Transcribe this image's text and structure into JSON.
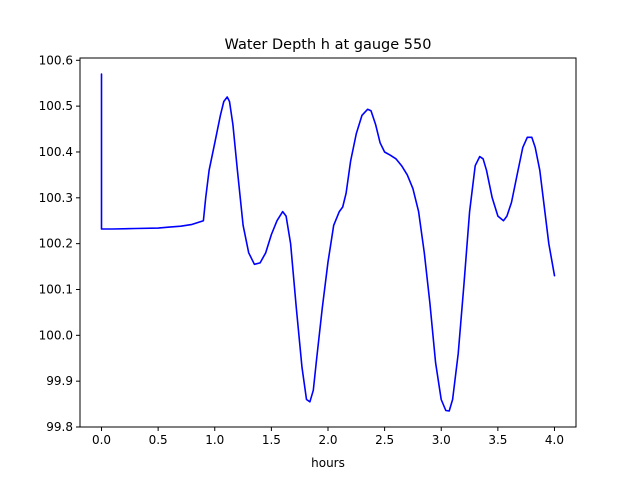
{
  "chart_data": {
    "type": "line",
    "title": "Water Depth h at gauge 550",
    "xlabel": "hours",
    "ylabel": "",
    "xlim": [
      -0.19,
      4.19
    ],
    "ylim": [
      99.8,
      100.605
    ],
    "xticks": [
      0.0,
      0.5,
      1.0,
      1.5,
      2.0,
      2.5,
      3.0,
      3.5,
      4.0
    ],
    "xtick_labels": [
      "0.0",
      "0.5",
      "1.0",
      "1.5",
      "2.0",
      "2.5",
      "3.0",
      "3.5",
      "4.0"
    ],
    "yticks": [
      99.8,
      99.9,
      100.0,
      100.1,
      100.2,
      100.3,
      100.4,
      100.5,
      100.6
    ],
    "ytick_labels": [
      "99.8",
      "99.9",
      "100.0",
      "100.1",
      "100.2",
      "100.3",
      "100.4",
      "100.5",
      "100.6"
    ],
    "grid": false,
    "legend": "none",
    "series": [
      {
        "color": "#0000ff",
        "x": [
          0.0,
          0.0,
          0.01,
          0.1,
          0.3,
          0.5,
          0.6,
          0.7,
          0.8,
          0.9,
          0.92,
          0.95,
          1.0,
          1.05,
          1.08,
          1.11,
          1.13,
          1.16,
          1.2,
          1.25,
          1.3,
          1.35,
          1.4,
          1.45,
          1.5,
          1.55,
          1.6,
          1.63,
          1.67,
          1.72,
          1.77,
          1.81,
          1.84,
          1.87,
          1.9,
          1.95,
          2.0,
          2.05,
          2.1,
          2.13,
          2.16,
          2.2,
          2.25,
          2.3,
          2.35,
          2.38,
          2.42,
          2.46,
          2.5,
          2.55,
          2.6,
          2.65,
          2.7,
          2.75,
          2.8,
          2.85,
          2.9,
          2.95,
          3.0,
          3.04,
          3.07,
          3.1,
          3.15,
          3.2,
          3.25,
          3.3,
          3.34,
          3.37,
          3.4,
          3.45,
          3.5,
          3.55,
          3.58,
          3.62,
          3.67,
          3.72,
          3.76,
          3.8,
          3.83,
          3.87,
          3.91,
          3.95,
          4.0
        ],
        "y": [
          100.57,
          100.232,
          100.232,
          100.232,
          100.233,
          100.234,
          100.236,
          100.238,
          100.242,
          100.25,
          100.3,
          100.36,
          100.42,
          100.48,
          100.51,
          100.52,
          100.51,
          100.46,
          100.36,
          100.24,
          100.18,
          100.155,
          100.158,
          100.18,
          100.22,
          100.25,
          100.27,
          100.26,
          100.2,
          100.06,
          99.93,
          99.86,
          99.855,
          99.88,
          99.95,
          100.06,
          100.16,
          100.24,
          100.27,
          100.28,
          100.31,
          100.38,
          100.44,
          100.48,
          100.493,
          100.49,
          100.46,
          100.42,
          100.4,
          100.393,
          100.385,
          100.37,
          100.35,
          100.32,
          100.27,
          100.18,
          100.07,
          99.94,
          99.86,
          99.836,
          99.835,
          99.86,
          99.96,
          100.11,
          100.27,
          100.37,
          100.39,
          100.385,
          100.36,
          100.3,
          100.26,
          100.25,
          100.26,
          100.29,
          100.35,
          100.41,
          100.432,
          100.432,
          100.41,
          100.36,
          100.28,
          100.2,
          100.13
        ]
      }
    ]
  }
}
